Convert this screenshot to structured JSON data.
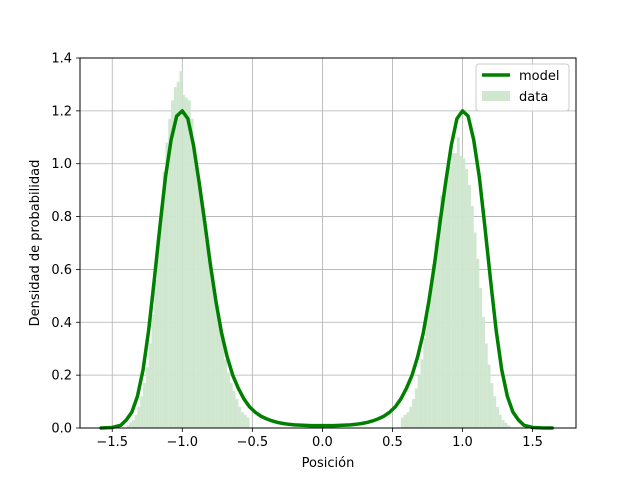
{
  "chart_data": {
    "type": "bar",
    "title": "",
    "xlabel": "Posición",
    "ylabel": "Densidad de probabilidad",
    "xlim": [
      -1.73,
      1.81
    ],
    "ylim": [
      0,
      1.4
    ],
    "xticks": [
      -1.5,
      -1.0,
      -0.5,
      0.0,
      0.5,
      1.0,
      1.5
    ],
    "xtick_labels": [
      "−1.5",
      "−1.0",
      "−0.5",
      "0.0",
      "0.5",
      "1.0",
      "1.5"
    ],
    "yticks": [
      0.0,
      0.2,
      0.4,
      0.6,
      0.8,
      1.0,
      1.2,
      1.4
    ],
    "ytick_labels": [
      "0.0",
      "0.2",
      "0.4",
      "0.6",
      "0.8",
      "1.0",
      "1.2",
      "1.4"
    ],
    "grid": true,
    "legend": {
      "position": "top-right",
      "entries": [
        {
          "label": "model",
          "kind": "line",
          "color": "#008000"
        },
        {
          "label": "data",
          "kind": "patch",
          "color": "#cfe6cf"
        }
      ]
    },
    "series": [
      {
        "name": "data",
        "kind": "histogram",
        "color": "#cfe6cf",
        "bin_width": 0.02,
        "bins": [
          [
            -1.4,
            0.01
          ],
          [
            -1.38,
            0.02
          ],
          [
            -1.36,
            0.03
          ],
          [
            -1.34,
            0.05
          ],
          [
            -1.32,
            0.08
          ],
          [
            -1.3,
            0.12
          ],
          [
            -1.28,
            0.17
          ],
          [
            -1.26,
            0.23
          ],
          [
            -1.24,
            0.32
          ],
          [
            -1.22,
            0.43
          ],
          [
            -1.2,
            0.56
          ],
          [
            -1.18,
            0.7
          ],
          [
            -1.16,
            0.84
          ],
          [
            -1.14,
            0.97
          ],
          [
            -1.12,
            1.08
          ],
          [
            -1.1,
            1.17
          ],
          [
            -1.08,
            1.24
          ],
          [
            -1.06,
            1.29
          ],
          [
            -1.04,
            1.31
          ],
          [
            -1.02,
            1.35
          ],
          [
            -1.0,
            1.26
          ],
          [
            -0.98,
            1.25
          ],
          [
            -0.96,
            1.24
          ],
          [
            -0.94,
            1.17
          ],
          [
            -0.92,
            1.06
          ],
          [
            -0.9,
            0.98
          ],
          [
            -0.88,
            0.91
          ],
          [
            -0.86,
            0.8
          ],
          [
            -0.84,
            0.71
          ],
          [
            -0.82,
            0.64
          ],
          [
            -0.8,
            0.6
          ],
          [
            -0.78,
            0.52
          ],
          [
            -0.76,
            0.46
          ],
          [
            -0.74,
            0.4
          ],
          [
            -0.72,
            0.36
          ],
          [
            -0.7,
            0.26
          ],
          [
            -0.68,
            0.21
          ],
          [
            -0.66,
            0.17
          ],
          [
            -0.64,
            0.14
          ],
          [
            -0.62,
            0.11
          ],
          [
            -0.6,
            0.08
          ],
          [
            -0.58,
            0.06
          ],
          [
            -0.56,
            0.05
          ],
          [
            -0.54,
            0.04
          ],
          [
            0.56,
            0.04
          ],
          [
            0.58,
            0.05
          ],
          [
            0.6,
            0.06
          ],
          [
            0.62,
            0.08
          ],
          [
            0.64,
            0.11
          ],
          [
            0.66,
            0.15
          ],
          [
            0.68,
            0.2
          ],
          [
            0.7,
            0.26
          ],
          [
            0.72,
            0.34
          ],
          [
            0.74,
            0.43
          ],
          [
            0.76,
            0.52
          ],
          [
            0.78,
            0.62
          ],
          [
            0.8,
            0.71
          ],
          [
            0.82,
            0.8
          ],
          [
            0.84,
            0.88
          ],
          [
            0.86,
            0.91
          ],
          [
            0.88,
            0.95
          ],
          [
            0.9,
            0.99
          ],
          [
            0.92,
            1.04
          ],
          [
            0.94,
            1.04
          ],
          [
            0.96,
            1.1
          ],
          [
            0.98,
            1.03
          ],
          [
            1.0,
            1.02
          ],
          [
            1.02,
            0.98
          ],
          [
            1.04,
            0.92
          ],
          [
            1.06,
            0.84
          ],
          [
            1.08,
            0.74
          ],
          [
            1.1,
            0.64
          ],
          [
            1.12,
            0.53
          ],
          [
            1.14,
            0.42
          ],
          [
            1.16,
            0.32
          ],
          [
            1.18,
            0.24
          ],
          [
            1.2,
            0.17
          ],
          [
            1.22,
            0.12
          ],
          [
            1.24,
            0.08
          ],
          [
            1.26,
            0.05
          ],
          [
            1.28,
            0.03
          ],
          [
            1.3,
            0.02
          ],
          [
            1.32,
            0.01
          ]
        ]
      },
      {
        "name": "model",
        "kind": "line",
        "color": "#008000",
        "x": [
          -1.58,
          -1.5,
          -1.44,
          -1.4,
          -1.36,
          -1.32,
          -1.28,
          -1.24,
          -1.2,
          -1.16,
          -1.12,
          -1.08,
          -1.04,
          -1.0,
          -0.96,
          -0.92,
          -0.88,
          -0.84,
          -0.8,
          -0.76,
          -0.72,
          -0.68,
          -0.64,
          -0.6,
          -0.56,
          -0.52,
          -0.48,
          -0.44,
          -0.4,
          -0.36,
          -0.32,
          -0.28,
          -0.24,
          -0.2,
          -0.16,
          -0.12,
          -0.08,
          -0.04,
          0.0,
          0.04,
          0.08,
          0.12,
          0.16,
          0.2,
          0.24,
          0.28,
          0.32,
          0.36,
          0.4,
          0.44,
          0.48,
          0.52,
          0.56,
          0.6,
          0.64,
          0.68,
          0.72,
          0.76,
          0.8,
          0.84,
          0.88,
          0.92,
          0.96,
          1.0,
          1.04,
          1.08,
          1.12,
          1.16,
          1.2,
          1.24,
          1.28,
          1.32,
          1.36,
          1.4,
          1.44,
          1.5,
          1.58,
          1.64
        ],
        "y": [
          0.0,
          0.002,
          0.01,
          0.03,
          0.06,
          0.12,
          0.22,
          0.37,
          0.56,
          0.76,
          0.95,
          1.09,
          1.18,
          1.2,
          1.17,
          1.07,
          0.93,
          0.78,
          0.62,
          0.48,
          0.36,
          0.27,
          0.2,
          0.15,
          0.11,
          0.08,
          0.06,
          0.045,
          0.035,
          0.027,
          0.021,
          0.017,
          0.014,
          0.012,
          0.011,
          0.01,
          0.009,
          0.009,
          0.009,
          0.009,
          0.009,
          0.01,
          0.011,
          0.012,
          0.014,
          0.017,
          0.021,
          0.027,
          0.035,
          0.045,
          0.06,
          0.08,
          0.11,
          0.15,
          0.2,
          0.27,
          0.36,
          0.48,
          0.62,
          0.78,
          0.93,
          1.07,
          1.17,
          1.2,
          1.18,
          1.09,
          0.95,
          0.76,
          0.56,
          0.37,
          0.22,
          0.12,
          0.06,
          0.03,
          0.01,
          0.002,
          0.0,
          0.0
        ]
      }
    ]
  }
}
